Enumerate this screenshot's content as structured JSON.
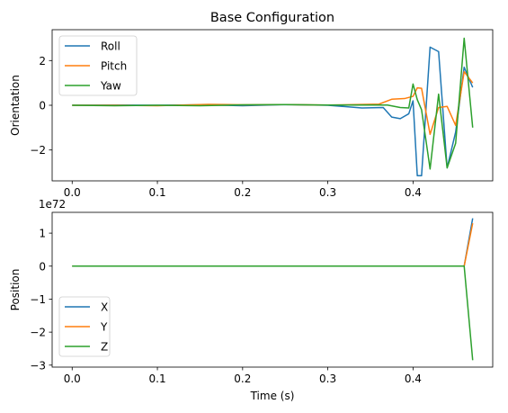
{
  "colors": {
    "roll": "#1f77b4",
    "pitch": "#ff7f0e",
    "yaw": "#2ca02c",
    "x": "#1f77b4",
    "y": "#ff7f0e",
    "z": "#2ca02c"
  },
  "chart_data": [
    {
      "type": "line",
      "title": "Base Configuration",
      "xlabel": "",
      "ylabel": "Orientation",
      "xlim": [
        -0.0235,
        0.4935
      ],
      "ylim": [
        -3.38,
        3.38
      ],
      "xticks": [
        0.0,
        0.1,
        0.2,
        0.3,
        0.4
      ],
      "xtick_labels": [
        "0.0",
        "0.1",
        "0.2",
        "0.3",
        "0.4"
      ],
      "yticks": [
        -2,
        0,
        2
      ],
      "ytick_labels": [
        "−2",
        "0",
        "2"
      ],
      "grid": false,
      "legend": "top-left",
      "series": [
        {
          "name": "Roll",
          "color_key": "roll",
          "points": [
            [
              0.0,
              0
            ],
            [
              0.05,
              0.01
            ],
            [
              0.1,
              0
            ],
            [
              0.15,
              0.02
            ],
            [
              0.2,
              -0.02
            ],
            [
              0.25,
              0.03
            ],
            [
              0.3,
              0
            ],
            [
              0.34,
              -0.12
            ],
            [
              0.365,
              -0.1
            ],
            [
              0.375,
              -0.53
            ],
            [
              0.385,
              -0.6
            ],
            [
              0.395,
              -0.38
            ],
            [
              0.4,
              0.2
            ],
            [
              0.405,
              -3.15
            ],
            [
              0.41,
              -3.15
            ],
            [
              0.42,
              2.6
            ],
            [
              0.43,
              2.4
            ],
            [
              0.44,
              -2.8
            ],
            [
              0.45,
              -1.2
            ],
            [
              0.46,
              1.7
            ],
            [
              0.47,
              0.8
            ]
          ]
        },
        {
          "name": "Pitch",
          "color_key": "pitch",
          "points": [
            [
              0.0,
              0
            ],
            [
              0.05,
              0
            ],
            [
              0.1,
              -0.02
            ],
            [
              0.16,
              0.04
            ],
            [
              0.2,
              0.02
            ],
            [
              0.25,
              0.03
            ],
            [
              0.3,
              0.01
            ],
            [
              0.36,
              0.05
            ],
            [
              0.375,
              0.27
            ],
            [
              0.39,
              0.3
            ],
            [
              0.4,
              0.4
            ],
            [
              0.405,
              0.78
            ],
            [
              0.41,
              0.76
            ],
            [
              0.42,
              -1.3
            ],
            [
              0.43,
              -0.1
            ],
            [
              0.44,
              -0.05
            ],
            [
              0.45,
              -0.9
            ],
            [
              0.46,
              1.5
            ],
            [
              0.47,
              1.0
            ]
          ]
        },
        {
          "name": "Yaw",
          "color_key": "yaw",
          "points": [
            [
              0.0,
              0
            ],
            [
              0.05,
              -0.02
            ],
            [
              0.1,
              0
            ],
            [
              0.15,
              -0.02
            ],
            [
              0.2,
              0.02
            ],
            [
              0.25,
              0.03
            ],
            [
              0.3,
              0.01
            ],
            [
              0.37,
              0.01
            ],
            [
              0.385,
              -0.1
            ],
            [
              0.395,
              -0.12
            ],
            [
              0.4,
              0.95
            ],
            [
              0.405,
              0.25
            ],
            [
              0.41,
              -0.2
            ],
            [
              0.42,
              -2.85
            ],
            [
              0.43,
              0.5
            ],
            [
              0.44,
              -2.8
            ],
            [
              0.45,
              -1.7
            ],
            [
              0.46,
              3.0
            ],
            [
              0.47,
              -1.0
            ]
          ]
        }
      ]
    },
    {
      "type": "line",
      "title": "",
      "xlabel": "Time (s)",
      "ylabel": "Position",
      "y_scale_label": "1e72",
      "xlim": [
        -0.0235,
        0.4935
      ],
      "ylim": [
        -3.06,
        1.63
      ],
      "xticks": [
        0.0,
        0.1,
        0.2,
        0.3,
        0.4
      ],
      "xtick_labels": [
        "0.0",
        "0.1",
        "0.2",
        "0.3",
        "0.4"
      ],
      "yticks": [
        -3,
        -2,
        -1,
        0,
        1
      ],
      "ytick_labels": [
        "−3",
        "−2",
        "−1",
        "0",
        "1"
      ],
      "grid": false,
      "legend": "bottom-left",
      "series": [
        {
          "name": "X",
          "color_key": "x",
          "points": [
            [
              0.0,
              0
            ],
            [
              0.46,
              0
            ],
            [
              0.47,
              1.45
            ]
          ]
        },
        {
          "name": "Y",
          "color_key": "y",
          "points": [
            [
              0.0,
              0
            ],
            [
              0.46,
              0
            ],
            [
              0.47,
              1.3
            ]
          ]
        },
        {
          "name": "Z",
          "color_key": "z",
          "points": [
            [
              0.0,
              0
            ],
            [
              0.46,
              0
            ],
            [
              0.47,
              -2.85
            ]
          ]
        }
      ]
    }
  ]
}
